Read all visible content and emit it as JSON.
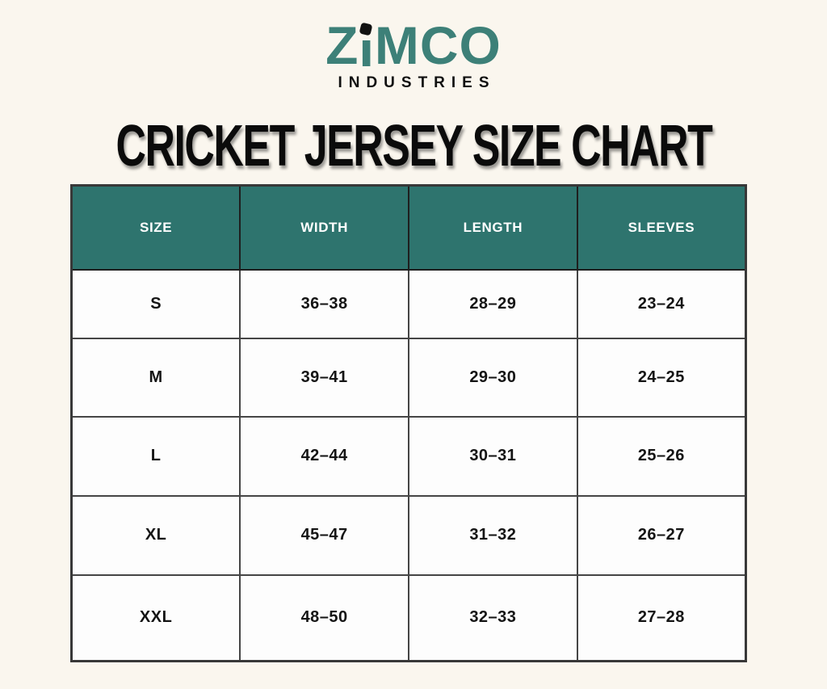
{
  "colors": {
    "page-bg": "#FAF6EE",
    "brand-teal": "#3D8078",
    "header-teal": "#2E746E",
    "ink": "#141414",
    "cell-bg": "#FDFDFD"
  },
  "brand": {
    "word_parts": [
      "Z",
      "I",
      "MCO"
    ],
    "subtitle": "INDUSTRIES"
  },
  "chart_data": {
    "type": "table",
    "title": "CRICKET JERSEY SIZE CHART",
    "columns": [
      "SIZE",
      "WIDTH",
      "LENGTH",
      "SLEEVES"
    ],
    "rows": [
      [
        "S",
        "36–38",
        "28–29",
        "23–24"
      ],
      [
        "M",
        "39–41",
        "29–30",
        "24–25"
      ],
      [
        "L",
        "42–44",
        "30–31",
        "25–26"
      ],
      [
        "XL",
        "45–47",
        "31–32",
        "26–27"
      ],
      [
        "XXL",
        "48–50",
        "32–33",
        "27–28"
      ]
    ]
  }
}
